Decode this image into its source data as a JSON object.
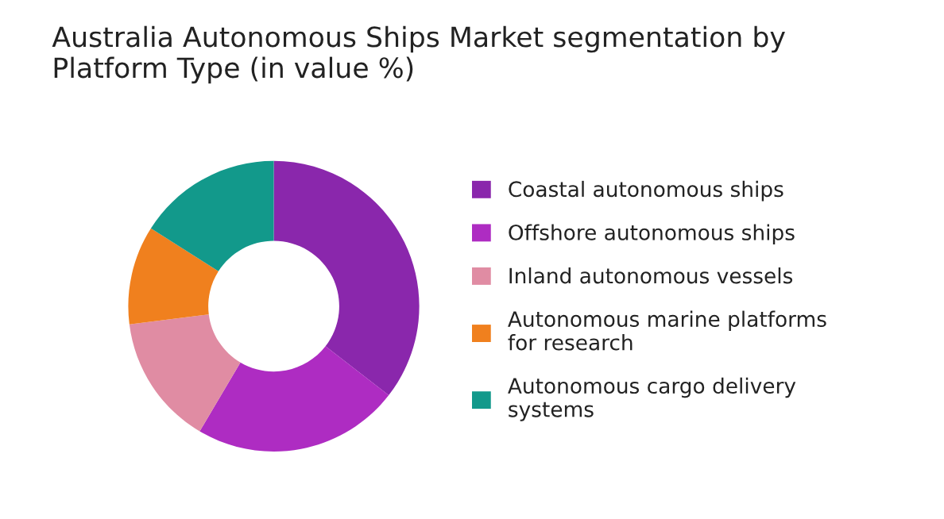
{
  "chart_data": {
    "type": "donut",
    "title": "Australia Autonomous Ships Market segmentation by\nPlatform Type (in value %)",
    "categories": [
      "Coastal autonomous ships",
      "Offshore autonomous ships",
      "Inland autonomous vessels",
      "Autonomous marine platforms\nfor research",
      "Autonomous cargo delivery\nsystems"
    ],
    "values": [
      35.5,
      23,
      14.5,
      11,
      16
    ],
    "colors": [
      "#8a27ac",
      "#ae2cc2",
      "#e08ca3",
      "#f0801e",
      "#12998b"
    ],
    "legend": "right"
  }
}
